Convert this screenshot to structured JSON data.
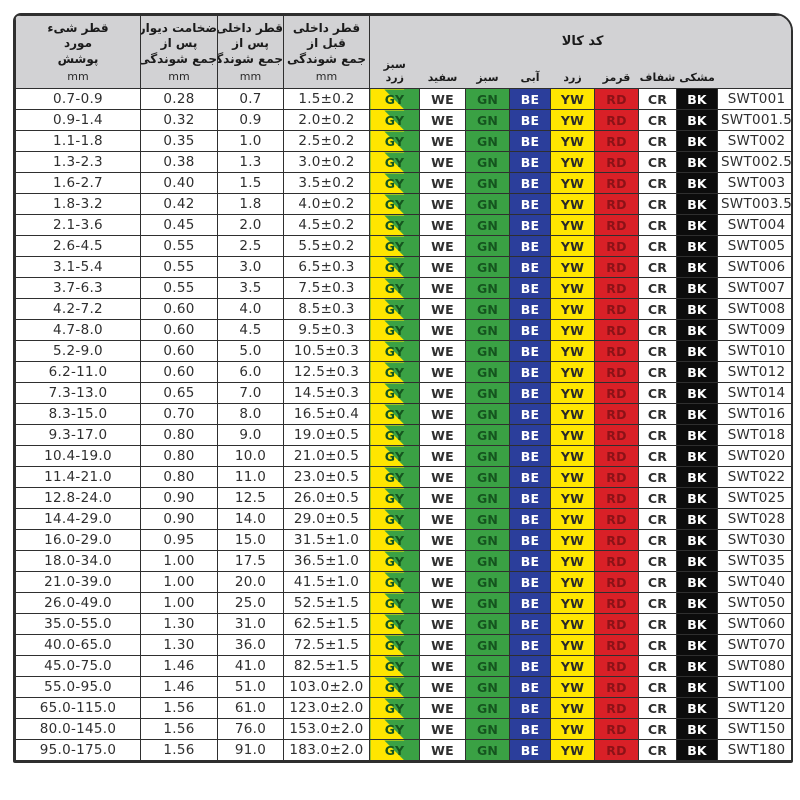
{
  "header": {
    "measure_columns": [
      {
        "lines": [
          "قطر شیء",
          "مورد",
          "پوشش"
        ],
        "unit": "mm"
      },
      {
        "lines": [
          "ضخامت دیوار",
          "پس از",
          "جمع شوندگی"
        ],
        "unit": "mm"
      },
      {
        "lines": [
          "قطر داخلی",
          "پس از",
          "جمع شوندگی"
        ],
        "unit": "mm"
      },
      {
        "lines": [
          "قطر داخلی",
          "قبل از",
          "جمع شوندگی"
        ],
        "unit": "mm"
      }
    ],
    "code_section_title": "کد کالا",
    "color_columns": [
      {
        "id": "gy",
        "code": "GY",
        "label_lines": [
          "سبز",
          "زرد"
        ]
      },
      {
        "id": "we",
        "code": "WE",
        "label_lines": [
          "سفید"
        ]
      },
      {
        "id": "gn",
        "code": "GN",
        "label_lines": [
          "سبز"
        ]
      },
      {
        "id": "be",
        "code": "BE",
        "label_lines": [
          "آبی"
        ]
      },
      {
        "id": "yw",
        "code": "YW",
        "label_lines": [
          "زرد"
        ]
      },
      {
        "id": "rd",
        "code": "RD",
        "label_lines": [
          "قرمز"
        ]
      },
      {
        "id": "cr",
        "code": "CR",
        "label_lines": [
          "شفاف"
        ]
      },
      {
        "id": "bk",
        "code": "BK",
        "label_lines": [
          "مشکی"
        ]
      }
    ]
  },
  "colors": {
    "header_bg": "#d2d2d4",
    "border": "#2f2f2f",
    "text": "#2f2f2f",
    "yellow": "#ffe600",
    "green": "#3aa144",
    "green_text": "#15551f",
    "blue": "#2b3e9b",
    "red": "#d92027",
    "red_text": "#8c1217",
    "black": "#0c0c0c",
    "white": "#ffffff",
    "yellow_text": "#2a2a2a"
  },
  "rows": [
    [
      "0.7-0.9",
      "0.28",
      "0.7",
      "1.5±0.2",
      "SWT001"
    ],
    [
      "0.9-1.4",
      "0.32",
      "0.9",
      "2.0±0.2",
      "SWT001.5"
    ],
    [
      "1.1-1.8",
      "0.35",
      "1.0",
      "2.5±0.2",
      "SWT002"
    ],
    [
      "1.3-2.3",
      "0.38",
      "1.3",
      "3.0±0.2",
      "SWT002.5"
    ],
    [
      "1.6-2.7",
      "0.40",
      "1.5",
      "3.5±0.2",
      "SWT003"
    ],
    [
      "1.8-3.2",
      "0.42",
      "1.8",
      "4.0±0.2",
      "SWT003.5"
    ],
    [
      "2.1-3.6",
      "0.45",
      "2.0",
      "4.5±0.2",
      "SWT004"
    ],
    [
      "2.6-4.5",
      "0.55",
      "2.5",
      "5.5±0.2",
      "SWT005"
    ],
    [
      "3.1-5.4",
      "0.55",
      "3.0",
      "6.5±0.3",
      "SWT006"
    ],
    [
      "3.7-6.3",
      "0.55",
      "3.5",
      "7.5±0.3",
      "SWT007"
    ],
    [
      "4.2-7.2",
      "0.60",
      "4.0",
      "8.5±0.3",
      "SWT008"
    ],
    [
      "4.7-8.0",
      "0.60",
      "4.5",
      "9.5±0.3",
      "SWT009"
    ],
    [
      "5.2-9.0",
      "0.60",
      "5.0",
      "10.5±0.3",
      "SWT010"
    ],
    [
      "6.2-11.0",
      "0.60",
      "6.0",
      "12.5±0.3",
      "SWT012"
    ],
    [
      "7.3-13.0",
      "0.65",
      "7.0",
      "14.5±0.3",
      "SWT014"
    ],
    [
      "8.3-15.0",
      "0.70",
      "8.0",
      "16.5±0.4",
      "SWT016"
    ],
    [
      "9.3-17.0",
      "0.80",
      "9.0",
      "19.0±0.5",
      "SWT018"
    ],
    [
      "10.4-19.0",
      "0.80",
      "10.0",
      "21.0±0.5",
      "SWT020"
    ],
    [
      "11.4-21.0",
      "0.80",
      "11.0",
      "23.0±0.5",
      "SWT022"
    ],
    [
      "12.8-24.0",
      "0.90",
      "12.5",
      "26.0±0.5",
      "SWT025"
    ],
    [
      "14.4-29.0",
      "0.90",
      "14.0",
      "29.0±0.5",
      "SWT028"
    ],
    [
      "16.0-29.0",
      "0.95",
      "15.0",
      "31.5±1.0",
      "SWT030"
    ],
    [
      "18.0-34.0",
      "1.00",
      "17.5",
      "36.5±1.0",
      "SWT035"
    ],
    [
      "21.0-39.0",
      "1.00",
      "20.0",
      "41.5±1.0",
      "SWT040"
    ],
    [
      "26.0-49.0",
      "1.00",
      "25.0",
      "52.5±1.5",
      "SWT050"
    ],
    [
      "35.0-55.0",
      "1.30",
      "31.0",
      "62.5±1.5",
      "SWT060"
    ],
    [
      "40.0-65.0",
      "1.30",
      "36.0",
      "72.5±1.5",
      "SWT070"
    ],
    [
      "45.0-75.0",
      "1.46",
      "41.0",
      "82.5±1.5",
      "SWT080"
    ],
    [
      "55.0-95.0",
      "1.46",
      "51.0",
      "103.0±2.0",
      "SWT100"
    ],
    [
      "65.0-115.0",
      "1.56",
      "61.0",
      "123.0±2.0",
      "SWT120"
    ],
    [
      "80.0-145.0",
      "1.56",
      "76.0",
      "153.0±2.0",
      "SWT150"
    ],
    [
      "95.0-175.0",
      "1.56",
      "91.0",
      "183.0±2.0",
      "SWT180"
    ]
  ]
}
